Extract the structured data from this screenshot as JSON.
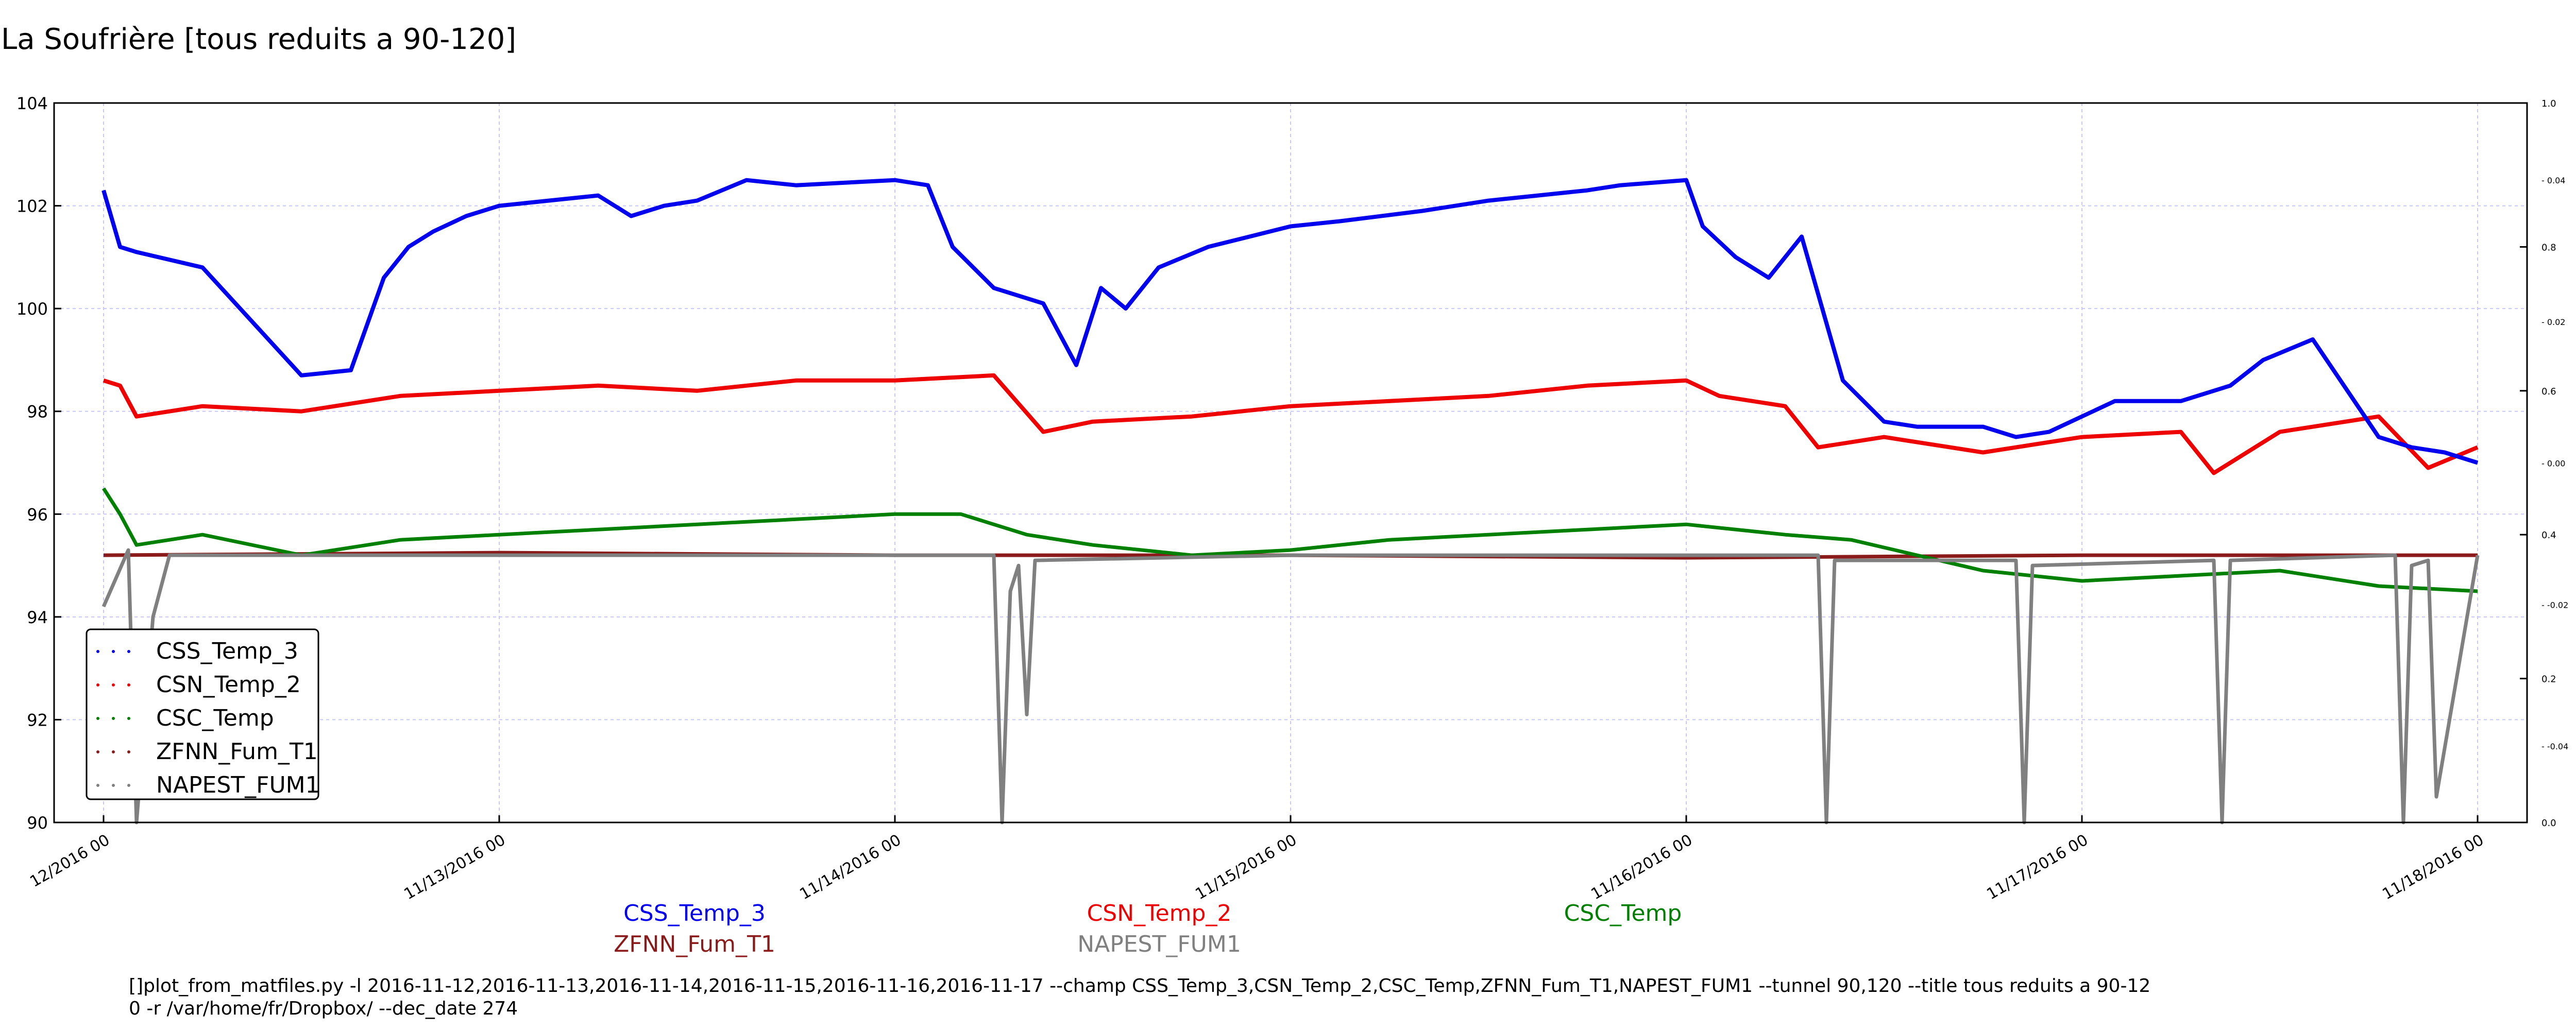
{
  "chart_data": {
    "type": "line",
    "title": "La Soufrière [tous reduits a 90-120]",
    "xlabel": "",
    "ylabel": "",
    "x_range": [
      "2016-11-12 00:00",
      "2016-11-18 00:00"
    ],
    "x_tick_labels": [
      "12/2016 00",
      "11/13/2016 00",
      "11/14/2016 00",
      "11/15/2016 00",
      "11/16/2016 00",
      "11/17/2016 00",
      "11/18/2016 00"
    ],
    "ylim": [
      90,
      104
    ],
    "y_tick_labels": [
      "90",
      "92",
      "94",
      "96",
      "98",
      "100",
      "102",
      "104"
    ],
    "secondary_ylim": [
      0,
      1
    ],
    "secondary_y_tick_labels": [
      "0.0",
      "0.2",
      "0.4",
      "0.6",
      "0.8",
      "1.0"
    ],
    "tertiary_y_tick_labels": [
      "-0.04",
      "-0.02",
      "0.00",
      "0.02",
      "0.04"
    ],
    "grid": true,
    "legend_position": "lower-left",
    "series": [
      {
        "name": "CSS_Temp_3",
        "color": "#0000ee",
        "x": [
          "2016-11-12 00:00",
          "2016-11-12 01:00",
          "2016-11-12 02:00",
          "2016-11-12 06:00",
          "2016-11-12 08:00",
          "2016-11-12 12:00",
          "2016-11-12 15:00",
          "2016-11-12 17:00",
          "2016-11-12 18:30",
          "2016-11-12 20:00",
          "2016-11-12 22:00",
          "2016-11-13 00:00",
          "2016-11-13 06:00",
          "2016-11-13 08:00",
          "2016-11-13 10:00",
          "2016-11-13 12:00",
          "2016-11-13 15:00",
          "2016-11-13 18:00",
          "2016-11-14 00:00",
          "2016-11-14 02:00",
          "2016-11-14 03:30",
          "2016-11-14 06:00",
          "2016-11-14 09:00",
          "2016-11-14 11:00",
          "2016-11-14 12:30",
          "2016-11-14 14:00",
          "2016-11-14 16:00",
          "2016-11-14 19:00",
          "2016-11-15 00:00",
          "2016-11-15 03:00",
          "2016-11-15 08:00",
          "2016-11-15 12:00",
          "2016-11-15 15:00",
          "2016-11-15 18:00",
          "2016-11-15 20:00",
          "2016-11-16 00:00",
          "2016-11-16 01:00",
          "2016-11-16 03:00",
          "2016-11-16 05:00",
          "2016-11-16 07:00",
          "2016-11-16 09:30",
          "2016-11-16 12:00",
          "2016-11-16 14:00",
          "2016-11-16 18:00",
          "2016-11-16 20:00",
          "2016-11-16 22:00",
          "2016-11-17 02:00",
          "2016-11-17 06:00",
          "2016-11-17 09:00",
          "2016-11-17 11:00",
          "2016-11-17 14:00",
          "2016-11-17 18:00",
          "2016-11-17 20:00",
          "2016-11-17 22:00",
          "2016-11-18 00:00"
        ],
        "y": [
          102.3,
          101.2,
          101.1,
          100.8,
          100.1,
          98.7,
          98.8,
          100.6,
          101.2,
          101.5,
          101.8,
          102.0,
          102.2,
          101.8,
          102.0,
          102.1,
          102.5,
          102.4,
          102.5,
          102.4,
          101.2,
          100.4,
          100.1,
          98.9,
          100.4,
          100.0,
          100.8,
          101.2,
          101.6,
          101.7,
          101.9,
          102.1,
          102.2,
          102.3,
          102.4,
          102.5,
          101.6,
          101.0,
          100.6,
          101.4,
          98.6,
          97.8,
          97.7,
          97.7,
          97.5,
          97.6,
          98.2,
          98.2,
          98.5,
          99.0,
          99.4,
          97.5,
          97.3,
          97.2,
          97.0
        ]
      },
      {
        "name": "CSN_Temp_2",
        "color": "#ee0000",
        "x": [
          "2016-11-12 00:00",
          "2016-11-12 01:00",
          "2016-11-12 02:00",
          "2016-11-12 06:00",
          "2016-11-12 12:00",
          "2016-11-12 18:00",
          "2016-11-13 00:00",
          "2016-11-13 06:00",
          "2016-11-13 12:00",
          "2016-11-13 18:00",
          "2016-11-14 00:00",
          "2016-11-14 06:00",
          "2016-11-14 09:00",
          "2016-11-14 12:00",
          "2016-11-14 18:00",
          "2016-11-15 00:00",
          "2016-11-15 06:00",
          "2016-11-15 12:00",
          "2016-11-15 18:00",
          "2016-11-16 00:00",
          "2016-11-16 02:00",
          "2016-11-16 06:00",
          "2016-11-16 08:00",
          "2016-11-16 12:00",
          "2016-11-16 18:00",
          "2016-11-17 00:00",
          "2016-11-17 06:00",
          "2016-11-17 08:00",
          "2016-11-17 12:00",
          "2016-11-17 18:00",
          "2016-11-17 21:00",
          "2016-11-18 00:00"
        ],
        "y": [
          98.6,
          98.5,
          97.9,
          98.1,
          98.0,
          98.3,
          98.4,
          98.5,
          98.4,
          98.6,
          98.6,
          98.7,
          97.6,
          97.8,
          97.9,
          98.1,
          98.2,
          98.3,
          98.5,
          98.6,
          98.3,
          98.1,
          97.3,
          97.5,
          97.2,
          97.5,
          97.6,
          96.8,
          97.6,
          97.9,
          96.9,
          97.3
        ]
      },
      {
        "name": "CSC_Temp",
        "color": "#008000",
        "x": [
          "2016-11-12 00:00",
          "2016-11-12 01:00",
          "2016-11-12 02:00",
          "2016-11-12 06:00",
          "2016-11-12 12:00",
          "2016-11-12 18:00",
          "2016-11-13 00:00",
          "2016-11-13 06:00",
          "2016-11-13 12:00",
          "2016-11-13 18:00",
          "2016-11-14 00:00",
          "2016-11-14 04:00",
          "2016-11-14 08:00",
          "2016-11-14 12:00",
          "2016-11-14 18:00",
          "2016-11-15 00:00",
          "2016-11-15 06:00",
          "2016-11-15 12:00",
          "2016-11-15 18:00",
          "2016-11-16 00:00",
          "2016-11-16 06:00",
          "2016-11-16 10:00",
          "2016-11-16 14:00",
          "2016-11-16 18:00",
          "2016-11-17 00:00",
          "2016-11-17 06:00",
          "2016-11-17 12:00",
          "2016-11-17 18:00",
          "2016-11-18 00:00"
        ],
        "y": [
          96.5,
          96.0,
          95.4,
          95.6,
          95.2,
          95.5,
          95.6,
          95.7,
          95.8,
          95.9,
          96.0,
          96.0,
          95.6,
          95.4,
          95.2,
          95.3,
          95.5,
          95.6,
          95.7,
          95.8,
          95.6,
          95.5,
          95.2,
          94.9,
          94.7,
          94.8,
          94.9,
          94.6,
          94.5
        ]
      },
      {
        "name": "ZFNN_Fum_T1",
        "color": "#8b1a1a",
        "x": [
          "2016-11-12 00:00",
          "2016-11-13 00:00",
          "2016-11-14 00:00",
          "2016-11-15 00:00",
          "2016-11-16 00:00",
          "2016-11-17 00:00",
          "2016-11-18 00:00"
        ],
        "y": [
          95.2,
          95.25,
          95.2,
          95.2,
          95.15,
          95.2,
          95.2
        ]
      },
      {
        "name": "NAPEST_FUM1",
        "color": "#808080",
        "x": [
          "2016-11-12 00:00",
          "2016-11-12 01:30",
          "2016-11-12 02:00",
          "2016-11-12 03:00",
          "2016-11-12 04:00",
          "2016-11-13 00:00",
          "2016-11-14 00:00",
          "2016-11-14 06:00",
          "2016-11-14 06:30",
          "2016-11-14 07:00",
          "2016-11-14 07:30",
          "2016-11-14 08:00",
          "2016-11-14 08:30",
          "2016-11-15 00:00",
          "2016-11-16 00:00",
          "2016-11-16 08:00",
          "2016-11-16 08:30",
          "2016-11-16 09:00",
          "2016-11-16 12:00",
          "2016-11-16 20:00",
          "2016-11-16 20:30",
          "2016-11-16 21:00",
          "2016-11-17 08:00",
          "2016-11-17 08:30",
          "2016-11-17 09:00",
          "2016-11-17 19:00",
          "2016-11-17 19:30",
          "2016-11-17 20:00",
          "2016-11-17 21:00",
          "2016-11-17 21:30",
          "2016-11-18 00:00"
        ],
        "y": [
          94.2,
          95.3,
          90.0,
          94.0,
          95.2,
          95.2,
          95.2,
          95.2,
          90.0,
          94.5,
          95.0,
          92.1,
          95.1,
          95.2,
          95.2,
          95.2,
          90.0,
          95.1,
          95.1,
          95.1,
          90.0,
          95.0,
          95.1,
          90.0,
          95.1,
          95.2,
          90.0,
          95.0,
          95.1,
          90.5,
          95.2
        ]
      }
    ]
  },
  "captions": {
    "css": "CSS_Temp_3",
    "csn": "CSN_Temp_2",
    "csc": "CSC_Temp",
    "zfnn": "ZFNN_Fum_T1",
    "napest": "NAPEST_FUM1"
  },
  "command_line": [
    "[]plot_from_matfiles.py -l 2016-11-12,2016-11-13,2016-11-14,2016-11-15,2016-11-16,2016-11-17 --champ CSS_Temp_3,CSN_Temp_2,CSC_Temp,ZFNN_Fum_T1,NAPEST_FUM1 --tunnel 90,120 --title tous reduits a 90-12",
    "0 -r /var/home/fr/Dropbox/ --dec_date 274"
  ]
}
